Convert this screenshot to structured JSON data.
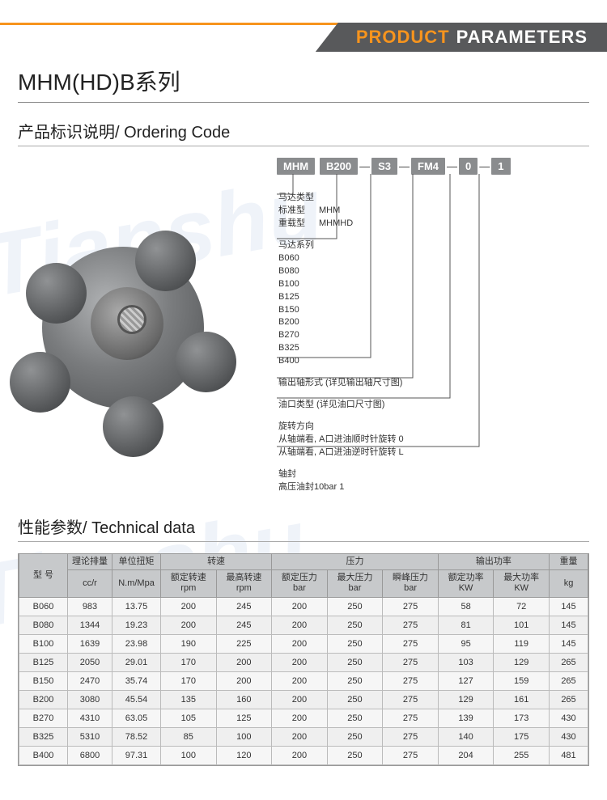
{
  "banner": {
    "word1": "PRODUCT",
    "word2": "PARAMETERS"
  },
  "series_title": "MHM(HD)B系列",
  "ordering_title": "产品标识说明/ Ordering Code",
  "watermark": "Tianshu",
  "code": {
    "p1": "MHM",
    "p2": "B200",
    "p3": "S3",
    "p4": "FM4",
    "p5": "0",
    "p6": "1"
  },
  "desc": {
    "blk1": {
      "l1": "马达类型",
      "l2a": "标准型",
      "l2b": "MHM",
      "l3a": "重载型",
      "l3b": "MHMHD"
    },
    "blk2": {
      "l1": "马达系列",
      "items": [
        "B060",
        "B080",
        "B100",
        "B125",
        "B150",
        "B200",
        "B270",
        "B325",
        "B400"
      ]
    },
    "blk3": "输出轴形式 (详见输出轴尺寸图)",
    "blk4": "油口类型 (详见油口尺寸图)",
    "blk5": {
      "l1": "旋转方向",
      "l2": "从轴端看, A口进油顺时针旋转   0",
      "l3": "从轴端看, A口进油逆时针旋转   L"
    },
    "blk6": {
      "l1": "轴封",
      "l2": "高压油封10bar   1"
    }
  },
  "tech_title": "性能参数/ Technical data",
  "table": {
    "headers": {
      "top": [
        "型 号",
        "理论排量",
        "单位扭矩",
        "转速",
        "压力",
        "输出功率",
        "重量"
      ],
      "sub": {
        "c2": "cc/r",
        "c3": "N.m/Mpa",
        "spd1a": "额定转速",
        "spd1b": "rpm",
        "spd2a": "最高转速",
        "spd2b": "rpm",
        "pr1a": "额定压力",
        "pr1b": "bar",
        "pr2a": "最大压力",
        "pr2b": "bar",
        "pr3a": "瞬峰压力",
        "pr3b": "bar",
        "pw1a": "额定功率",
        "pw1b": "KW",
        "pw2a": "最大功率",
        "pw2b": "KW",
        "wt": "kg"
      }
    },
    "rows": [
      [
        "B060",
        "983",
        "13.75",
        "200",
        "245",
        "200",
        "250",
        "275",
        "58",
        "72",
        "145"
      ],
      [
        "B080",
        "1344",
        "19.23",
        "200",
        "245",
        "200",
        "250",
        "275",
        "81",
        "101",
        "145"
      ],
      [
        "B100",
        "1639",
        "23.98",
        "190",
        "225",
        "200",
        "250",
        "275",
        "95",
        "119",
        "145"
      ],
      [
        "B125",
        "2050",
        "29.01",
        "170",
        "200",
        "200",
        "250",
        "275",
        "103",
        "129",
        "265"
      ],
      [
        "B150",
        "2470",
        "35.74",
        "170",
        "200",
        "200",
        "250",
        "275",
        "127",
        "159",
        "265"
      ],
      [
        "B200",
        "3080",
        "45.54",
        "135",
        "160",
        "200",
        "250",
        "275",
        "129",
        "161",
        "265"
      ],
      [
        "B270",
        "4310",
        "63.05",
        "105",
        "125",
        "200",
        "250",
        "275",
        "139",
        "173",
        "430"
      ],
      [
        "B325",
        "5310",
        "78.52",
        "85",
        "100",
        "200",
        "250",
        "275",
        "140",
        "175",
        "430"
      ],
      [
        "B400",
        "6800",
        "97.31",
        "100",
        "120",
        "200",
        "250",
        "275",
        "204",
        "255",
        "481"
      ]
    ]
  }
}
